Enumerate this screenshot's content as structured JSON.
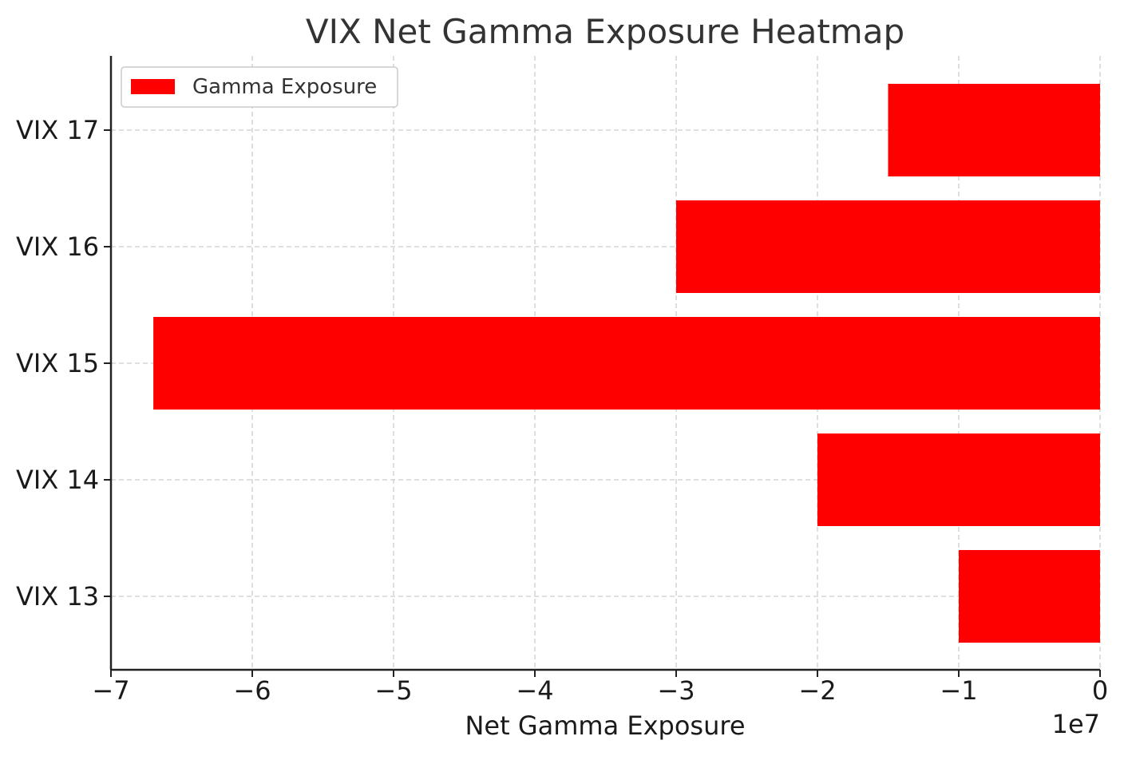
{
  "chart_data": {
    "type": "bar",
    "orientation": "horizontal",
    "title": "VIX Net Gamma Exposure Heatmap",
    "xlabel": "Net Gamma Exposure",
    "ylabel": "",
    "x_offset_label": "1e7",
    "categories": [
      "VIX 13",
      "VIX 14",
      "VIX 15",
      "VIX 16",
      "VIX 17"
    ],
    "series": [
      {
        "name": "Gamma Exposure",
        "color": "#ff0000",
        "values": [
          -10000000,
          -20000000,
          -67000000,
          -30000000,
          -15000000
        ]
      }
    ],
    "xlim": [
      -70000000,
      0
    ],
    "xticks": [
      -70000000,
      -60000000,
      -50000000,
      -40000000,
      -30000000,
      -20000000,
      -10000000,
      0
    ],
    "xtick_labels": [
      "−7",
      "−6",
      "−5",
      "−4",
      "−3",
      "−2",
      "−1",
      "0"
    ],
    "grid": true,
    "legend_position": "top-left"
  }
}
